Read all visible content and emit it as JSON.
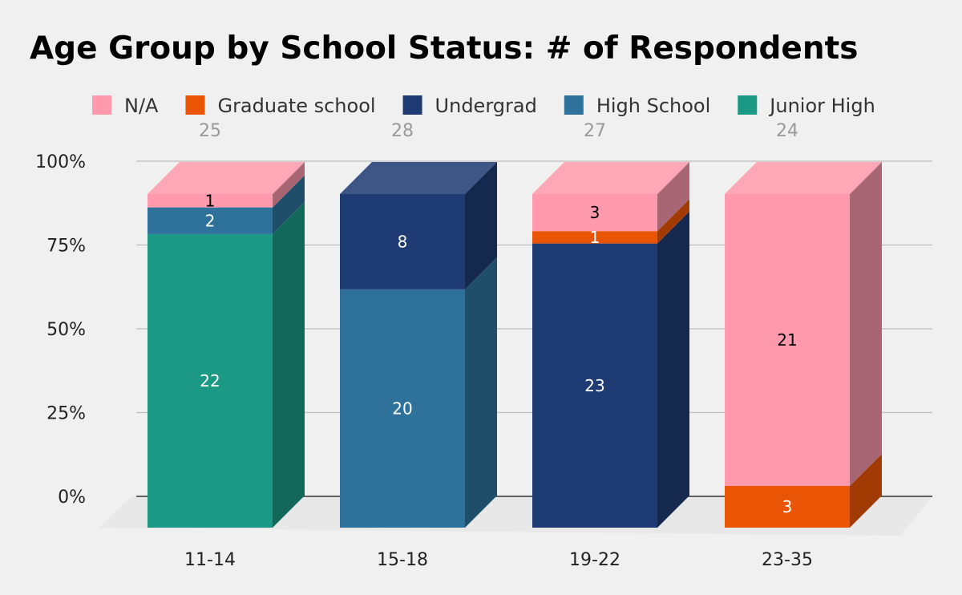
{
  "chart_data": {
    "type": "bar",
    "stacked": true,
    "percent_stacked": true,
    "title": "Age Group by School Status: # of Respondents",
    "xlabel": "",
    "ylabel": "",
    "ylim": [
      0,
      100
    ],
    "y_ticks": [
      "0%",
      "25%",
      "50%",
      "75%",
      "100%"
    ],
    "legend_position": "top",
    "categories": [
      "11-14",
      "15-18",
      "19-22",
      "23-35"
    ],
    "totals": [
      "25",
      "28",
      "27",
      "24"
    ],
    "series": [
      {
        "name": "Junior High",
        "color": "#1b9985",
        "side_color": "#126959",
        "label_color": "#ffffff",
        "values": [
          22,
          0,
          0,
          0
        ]
      },
      {
        "name": "High School",
        "color": "#2e729b",
        "side_color": "#1f4e6b",
        "label_color": "#ffffff",
        "values": [
          2,
          20,
          0,
          0
        ]
      },
      {
        "name": "Undergrad",
        "color": "#1f3b73",
        "side_color": "#15284e",
        "label_color": "#ffffff",
        "values": [
          0,
          8,
          23,
          0
        ]
      },
      {
        "name": "Graduate school",
        "color": "#e95505",
        "side_color": "#a13a03",
        "label_color": "#ffffff",
        "values": [
          0,
          0,
          1,
          3
        ]
      },
      {
        "name": "N/A",
        "color": "#ff9aad",
        "side_color": "#a86574",
        "label_color": "#000000",
        "values": [
          1,
          0,
          3,
          21
        ]
      }
    ],
    "legend_order": [
      "N/A",
      "Graduate school",
      "Undergrad",
      "High School",
      "Junior High"
    ]
  }
}
